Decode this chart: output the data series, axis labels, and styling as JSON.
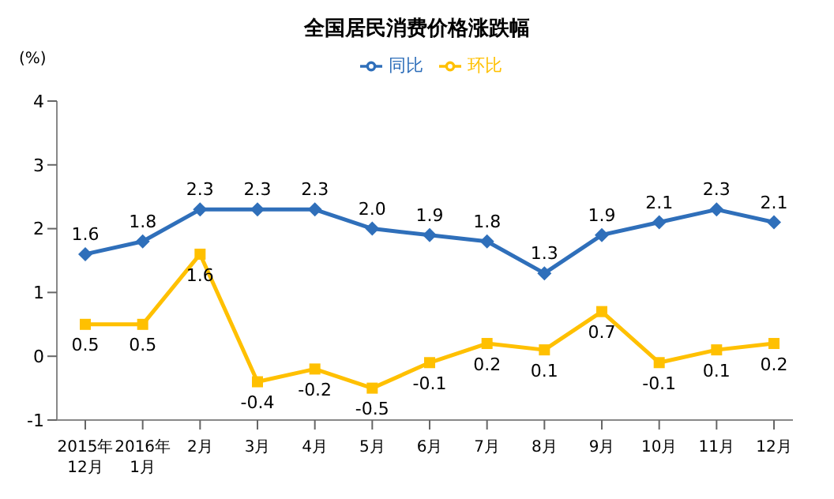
{
  "chart_data": {
    "type": "line",
    "title": "全国居民消费价格涨跌幅",
    "ylabel": "(%)",
    "categories": [
      "2015年\n12月",
      "2016年\n1月",
      "2月",
      "3月",
      "4月",
      "5月",
      "6月",
      "7月",
      "8月",
      "9月",
      "10月",
      "11月",
      "12月"
    ],
    "series": [
      {
        "name": "同比",
        "color": "#2f6fba",
        "marker": "diamond",
        "values": [
          1.6,
          1.8,
          2.3,
          2.3,
          2.3,
          2.0,
          1.9,
          1.8,
          1.3,
          1.9,
          2.1,
          2.3,
          2.1
        ],
        "value_labels": [
          "1.6",
          "1.8",
          "2.3",
          "2.3",
          "2.3",
          "2.0",
          "1.9",
          "1.8",
          "1.3",
          "1.9",
          "2.1",
          "2.3",
          "2.1"
        ]
      },
      {
        "name": "环比",
        "color": "#ffc000",
        "marker": "square",
        "values": [
          0.5,
          0.5,
          1.6,
          -0.4,
          -0.2,
          -0.5,
          -0.1,
          0.2,
          0.1,
          0.7,
          -0.1,
          0.1,
          0.2
        ],
        "value_labels": [
          "0.5",
          "0.5",
          "1.6",
          "-0.4",
          "-0.2",
          "-0.5",
          "-0.1",
          "0.2",
          "0.1",
          "0.7",
          "-0.1",
          "0.1",
          "0.2"
        ]
      }
    ],
    "ylim": [
      -1,
      4
    ],
    "yticks": [
      -1,
      0,
      1,
      2,
      3,
      4
    ],
    "legend": "top",
    "line_style": "solid"
  }
}
